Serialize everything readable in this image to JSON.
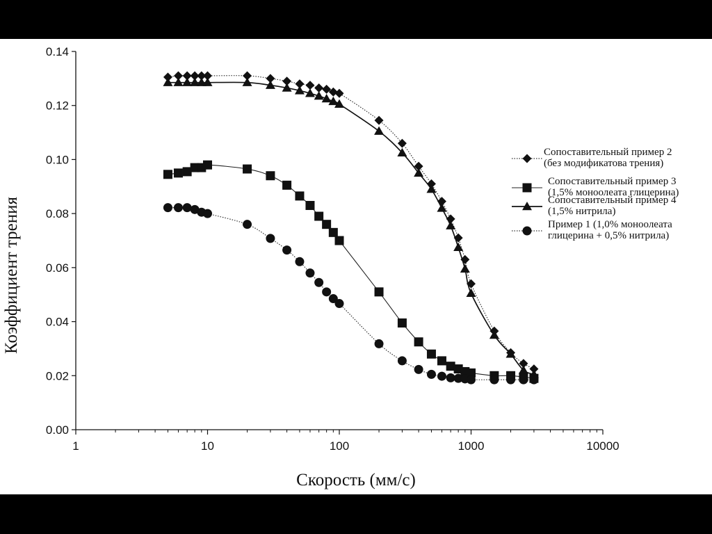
{
  "chart_data": {
    "type": "line",
    "xlabel": "Скорость (мм/с)",
    "ylabel": "Коэффициент трения",
    "xscale": "log",
    "xlim": [
      1,
      10000
    ],
    "ylim": [
      0,
      0.14
    ],
    "x_ticks": [
      "1",
      "10",
      "100",
      "1000",
      "10000"
    ],
    "y_ticks": [
      "0.00",
      "0.02",
      "0.04",
      "0.06",
      "0.08",
      "0.10",
      "0.12",
      "0.14"
    ],
    "legend_position": "right",
    "series": [
      {
        "name": "Сопоставительный пример 2 (без модификатова трения)",
        "legend_lines": [
          "Сопоставительный пример 2",
          "(без модификатова трения)"
        ],
        "marker": "diamond",
        "line_style": "dotted",
        "color": "#000000",
        "points": [
          [
            5,
            0.1305
          ],
          [
            6,
            0.131
          ],
          [
            7,
            0.131
          ],
          [
            8,
            0.131
          ],
          [
            9,
            0.131
          ],
          [
            10,
            0.131
          ],
          [
            20,
            0.131
          ],
          [
            30,
            0.13
          ],
          [
            40,
            0.129
          ],
          [
            50,
            0.128
          ],
          [
            60,
            0.1275
          ],
          [
            70,
            0.1265
          ],
          [
            80,
            0.126
          ],
          [
            90,
            0.125
          ],
          [
            100,
            0.1245
          ],
          [
            200,
            0.1145
          ],
          [
            300,
            0.106
          ],
          [
            400,
            0.0975
          ],
          [
            500,
            0.091
          ],
          [
            600,
            0.0845
          ],
          [
            700,
            0.078
          ],
          [
            800,
            0.071
          ],
          [
            900,
            0.063
          ],
          [
            1000,
            0.054
          ],
          [
            1500,
            0.0365
          ],
          [
            2000,
            0.0285
          ],
          [
            2500,
            0.0245
          ],
          [
            3000,
            0.0225
          ]
        ]
      },
      {
        "name": "Сопоставительный пример 3 (1,5% моноолеата глицерина)",
        "legend_lines": [
          "Сопоставительный пример 3",
          "(1,5% моноолеата глицерина)"
        ],
        "marker": "square",
        "line_style": "solid-thin",
        "color": "#000000",
        "points": [
          [
            5,
            0.0945
          ],
          [
            6,
            0.095
          ],
          [
            7,
            0.0955
          ],
          [
            8,
            0.097
          ],
          [
            9,
            0.097
          ],
          [
            10,
            0.098
          ],
          [
            20,
            0.0965
          ],
          [
            30,
            0.094
          ],
          [
            40,
            0.0905
          ],
          [
            50,
            0.0865
          ],
          [
            60,
            0.083
          ],
          [
            70,
            0.079
          ],
          [
            80,
            0.076
          ],
          [
            90,
            0.073
          ],
          [
            100,
            0.07
          ],
          [
            200,
            0.051
          ],
          [
            300,
            0.0395
          ],
          [
            400,
            0.0325
          ],
          [
            500,
            0.028
          ],
          [
            600,
            0.0255
          ],
          [
            700,
            0.0235
          ],
          [
            800,
            0.0225
          ],
          [
            900,
            0.0215
          ],
          [
            1000,
            0.021
          ],
          [
            1500,
            0.02
          ],
          [
            2000,
            0.02
          ],
          [
            2500,
            0.0195
          ],
          [
            3000,
            0.019
          ]
        ]
      },
      {
        "name": "Сопоставительный пример 4 (1,5% нитрила)",
        "legend_lines": [
          "Сопоставительный пример 4",
          "(1,5% нитрила)"
        ],
        "marker": "triangle",
        "line_style": "solid",
        "color": "#000000",
        "points": [
          [
            5,
            0.1285
          ],
          [
            6,
            0.1285
          ],
          [
            7,
            0.1285
          ],
          [
            8,
            0.1285
          ],
          [
            9,
            0.1285
          ],
          [
            10,
            0.1285
          ],
          [
            20,
            0.1285
          ],
          [
            30,
            0.1275
          ],
          [
            40,
            0.1265
          ],
          [
            50,
            0.1255
          ],
          [
            60,
            0.1245
          ],
          [
            70,
            0.1235
          ],
          [
            80,
            0.1225
          ],
          [
            90,
            0.1215
          ],
          [
            100,
            0.1205
          ],
          [
            200,
            0.1105
          ],
          [
            300,
            0.1025
          ],
          [
            400,
            0.095
          ],
          [
            500,
            0.089
          ],
          [
            600,
            0.082
          ],
          [
            700,
            0.0755
          ],
          [
            800,
            0.0675
          ],
          [
            900,
            0.0595
          ],
          [
            1000,
            0.0505
          ],
          [
            1500,
            0.035
          ],
          [
            2000,
            0.028
          ],
          [
            2500,
            0.022
          ],
          [
            3000,
            0.0205
          ]
        ]
      },
      {
        "name": "Пример 1 (1,0% моноолеата глицерина + 0,5% нитрила)",
        "legend_lines": [
          "Пример 1 (1,0% моноолеата",
          "глицерина + 0,5% нитрила)"
        ],
        "marker": "circle",
        "line_style": "dotted",
        "color": "#000000",
        "points": [
          [
            5,
            0.0822
          ],
          [
            6,
            0.0822
          ],
          [
            7,
            0.0822
          ],
          [
            8,
            0.0815
          ],
          [
            9,
            0.0805
          ],
          [
            10,
            0.08
          ],
          [
            20,
            0.076
          ],
          [
            30,
            0.0708
          ],
          [
            40,
            0.0665
          ],
          [
            50,
            0.0622
          ],
          [
            60,
            0.058
          ],
          [
            70,
            0.0545
          ],
          [
            80,
            0.051
          ],
          [
            90,
            0.0485
          ],
          [
            100,
            0.0467
          ],
          [
            200,
            0.0318
          ],
          [
            300,
            0.0255
          ],
          [
            400,
            0.0223
          ],
          [
            500,
            0.0205
          ],
          [
            600,
            0.0198
          ],
          [
            700,
            0.0192
          ],
          [
            800,
            0.019
          ],
          [
            900,
            0.0188
          ],
          [
            1000,
            0.0185
          ],
          [
            1500,
            0.0185
          ],
          [
            2000,
            0.0185
          ],
          [
            2500,
            0.0185
          ],
          [
            3000,
            0.0185
          ]
        ]
      }
    ]
  }
}
